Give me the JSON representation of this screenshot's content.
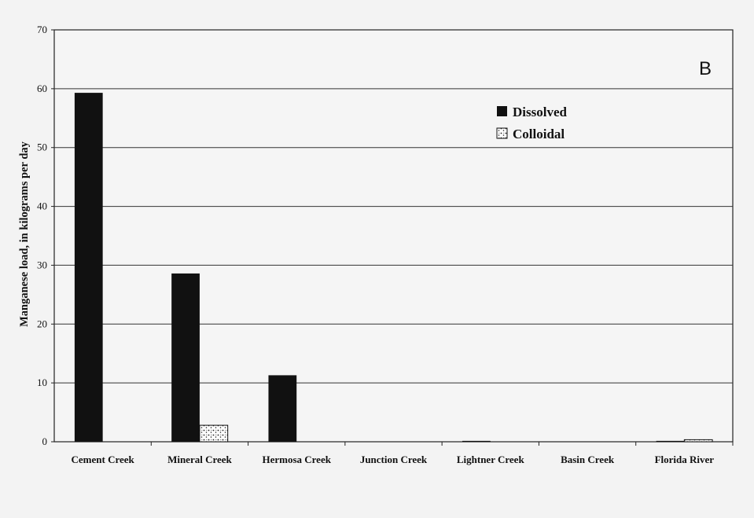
{
  "chart_data": {
    "type": "bar",
    "panel_label": "B",
    "ylabel": "Manganese load, in kilograms per day",
    "ylim": [
      0,
      70
    ],
    "yticks": [
      0,
      10,
      20,
      30,
      40,
      50,
      60,
      70
    ],
    "categories": [
      "Cement Creek",
      "Mineral Creek",
      "Hermosa Creek",
      "Junction Creek",
      "Lightner Creek",
      "Basin Creek",
      "Florida River"
    ],
    "series": [
      {
        "name": "Dissolved",
        "color": "#111111",
        "pattern": "solid",
        "values": [
          59.3,
          28.6,
          11.3,
          0.0,
          0.15,
          0.0,
          0.15
        ]
      },
      {
        "name": "Colloidal",
        "color": "#ffffff",
        "pattern": "stipple",
        "values": [
          0.0,
          2.8,
          0.0,
          0.0,
          0.0,
          0.0,
          0.35
        ]
      }
    ],
    "grid": true,
    "legend_position": "top-right"
  }
}
